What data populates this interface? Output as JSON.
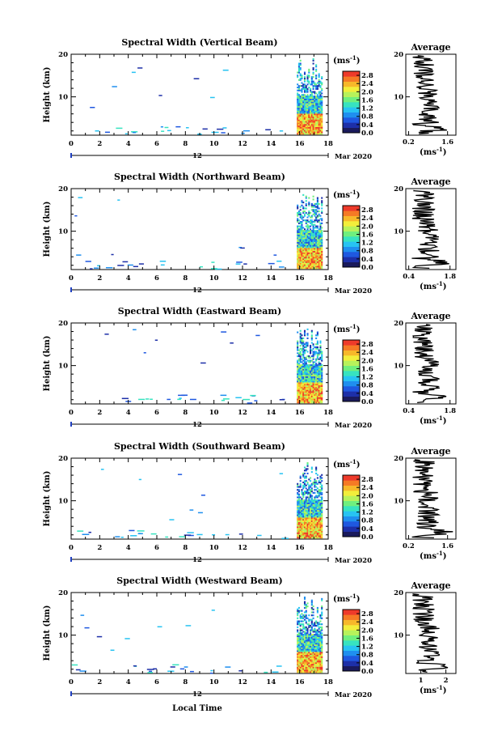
{
  "figure": {
    "xlabel": "Local Time",
    "date_label": "Mar 2020",
    "day_label": "12",
    "avg_title": "Average",
    "cb_unit": "(ms",
    "cb_unit_exp": "-1",
    "ylabel": "Height (km)",
    "colors": {
      "colormap": [
        "#1a1a5c",
        "#1d2fa8",
        "#1f58e0",
        "#1f8fef",
        "#27c3f2",
        "#37e3c0",
        "#6fef7e",
        "#b7f25b",
        "#f2ee3b",
        "#f7b82a",
        "#f57a25",
        "#ee3a2a"
      ],
      "plot_line": "#000000"
    }
  },
  "chart_data": [
    {
      "type": "heatmap",
      "title": "Spectral Width (Vertical Beam)",
      "x_ticks": [
        "0",
        "2",
        "4",
        "6",
        "8",
        "10",
        "12",
        "14",
        "16",
        "18"
      ],
      "xlim": [
        0,
        18
      ],
      "y_ticks": [
        "20",
        "10"
      ],
      "ylim": [
        1,
        20
      ],
      "colorbar": {
        "ticks": [
          "2.8",
          "2.4",
          "2.0",
          "1.6",
          "1.2",
          "0.8",
          "0.4",
          "0.0"
        ],
        "range": [
          0,
          3.0
        ]
      },
      "avg_x_ticks": [
        "0.2",
        "1.6"
      ],
      "avg_xlim": [
        0.1,
        1.9
      ],
      "avg_xlabel": "(ms",
      "avg_xlabel_exp": "-1"
    },
    {
      "type": "heatmap",
      "title": "Spectral Width (Northward Beam)",
      "x_ticks": [
        "0",
        "2",
        "4",
        "6",
        "8",
        "10",
        "12",
        "14",
        "16",
        "18"
      ],
      "xlim": [
        0,
        18
      ],
      "y_ticks": [
        "20",
        "10"
      ],
      "ylim": [
        1,
        20
      ],
      "colorbar": {
        "ticks": [
          "2.8",
          "2.4",
          "2.0",
          "1.6",
          "1.2",
          "0.8",
          "0.4",
          "0.0"
        ],
        "range": [
          0,
          3.0
        ]
      },
      "avg_x_ticks": [
        "0.4",
        "1.8"
      ],
      "avg_xlim": [
        0.3,
        2.0
      ],
      "avg_xlabel": "(ms",
      "avg_xlabel_exp": "-1"
    },
    {
      "type": "heatmap",
      "title": "Spectral Width (Eastward Beam)",
      "x_ticks": [
        "0",
        "2",
        "4",
        "6",
        "8",
        "10",
        "12",
        "14",
        "16",
        "18"
      ],
      "xlim": [
        0,
        18
      ],
      "y_ticks": [
        "20",
        "10"
      ],
      "ylim": [
        1,
        20
      ],
      "colorbar": {
        "ticks": [
          "2.8",
          "2.4",
          "2.0",
          "1.6",
          "1.2",
          "0.8",
          "0.4",
          "0.0"
        ],
        "range": [
          0,
          3.0
        ]
      },
      "avg_x_ticks": [
        "0.4",
        "1.8"
      ],
      "avg_xlim": [
        0.3,
        2.0
      ],
      "avg_xlabel": "(ms",
      "avg_xlabel_exp": "-1"
    },
    {
      "type": "heatmap",
      "title": "Spectral Width (Southward Beam)",
      "x_ticks": [
        "0",
        "2",
        "4",
        "6",
        "8",
        "10",
        "12",
        "14",
        "16",
        "18"
      ],
      "xlim": [
        0,
        18
      ],
      "y_ticks": [
        "20",
        "10"
      ],
      "ylim": [
        1,
        20
      ],
      "colorbar": {
        "ticks": [
          "2.8",
          "2.4",
          "2.0",
          "1.6",
          "1.2",
          "0.8",
          "0.4",
          "0.0"
        ],
        "range": [
          0,
          3.0
        ]
      },
      "avg_x_ticks": [
        "0.2",
        "1.6"
      ],
      "avg_xlim": [
        0.1,
        1.9
      ],
      "avg_xlabel": "(ms",
      "avg_xlabel_exp": "-1"
    },
    {
      "type": "heatmap",
      "title": "Spectral Width (Westward Beam)",
      "x_ticks": [
        "0",
        "2",
        "4",
        "6",
        "8",
        "10",
        "12",
        "14",
        "16",
        "18"
      ],
      "xlim": [
        0,
        18
      ],
      "y_ticks": [
        "20",
        "10"
      ],
      "ylim": [
        1,
        20
      ],
      "colorbar": {
        "ticks": [
          "2.8",
          "2.4",
          "2.0",
          "1.6",
          "1.2",
          "0.8",
          "0.4",
          "0.0"
        ],
        "range": [
          0,
          3.0
        ]
      },
      "avg_x_ticks": [
        "1",
        "2"
      ],
      "avg_xlim": [
        0.4,
        2.4
      ],
      "avg_xlabel": "(ms",
      "avg_xlabel_exp": "-1"
    }
  ]
}
